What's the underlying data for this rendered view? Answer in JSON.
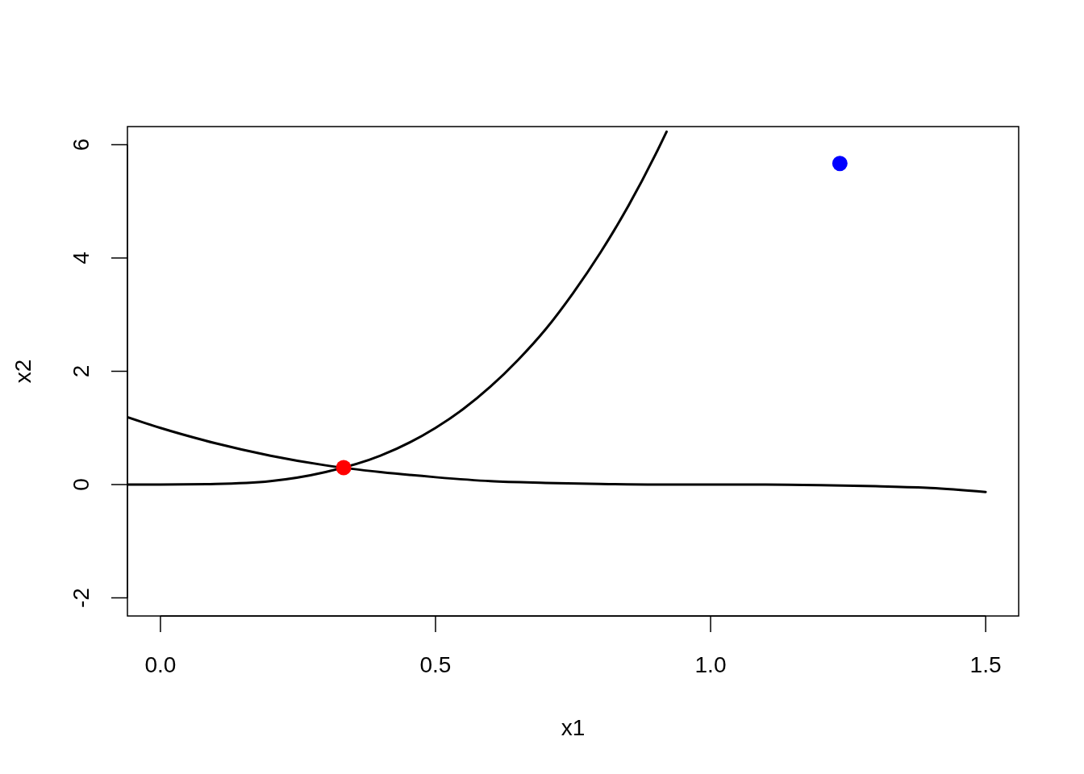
{
  "chart_data": {
    "type": "line",
    "xlabel": "x1",
    "ylabel": "x2",
    "xlim": [
      -0.06,
      1.56
    ],
    "ylim": [
      -2.32,
      6.32
    ],
    "xticks": [
      {
        "value": 0,
        "label": "0.0"
      },
      0.5,
      {
        "value": 1,
        "label": "1.0"
      },
      1.5
    ],
    "yticks": [
      -2,
      0,
      2,
      4,
      6
    ],
    "grid": false,
    "line_style": "solid",
    "series": [
      {
        "color": "#000000",
        "x": [
          -0.06,
          0,
          0.1,
          0.2,
          0.3,
          0.4,
          0.5,
          0.55,
          0.6,
          0.65,
          0.7,
          0.75,
          0.8,
          0.85,
          0.9,
          0.92
        ],
        "values": [
          0,
          0,
          0.01,
          0.06,
          0.22,
          0.51,
          1.0,
          1.33,
          1.73,
          2.2,
          2.74,
          3.38,
          4.1,
          4.91,
          5.83,
          6.23
        ]
      },
      {
        "color": "#000000",
        "x": [
          -0.06,
          0,
          0.1,
          0.2,
          0.3,
          0.4,
          0.5,
          0.6,
          0.7,
          0.8,
          0.9,
          1.0,
          1.1,
          1.2,
          1.3,
          1.4,
          1.5
        ],
        "values": [
          1.19,
          1.0,
          0.73,
          0.51,
          0.34,
          0.22,
          0.13,
          0.06,
          0.03,
          0.01,
          0,
          0,
          0,
          -0.01,
          -0.03,
          -0.06,
          -0.13
        ]
      },
      {
        "type": "scatter",
        "color": "#ff0000",
        "x": [
          0.333
        ],
        "values": [
          0.3
        ]
      },
      {
        "type": "scatter",
        "color": "#0000ff",
        "x": [
          1.235
        ],
        "values": [
          5.67
        ]
      }
    ]
  }
}
